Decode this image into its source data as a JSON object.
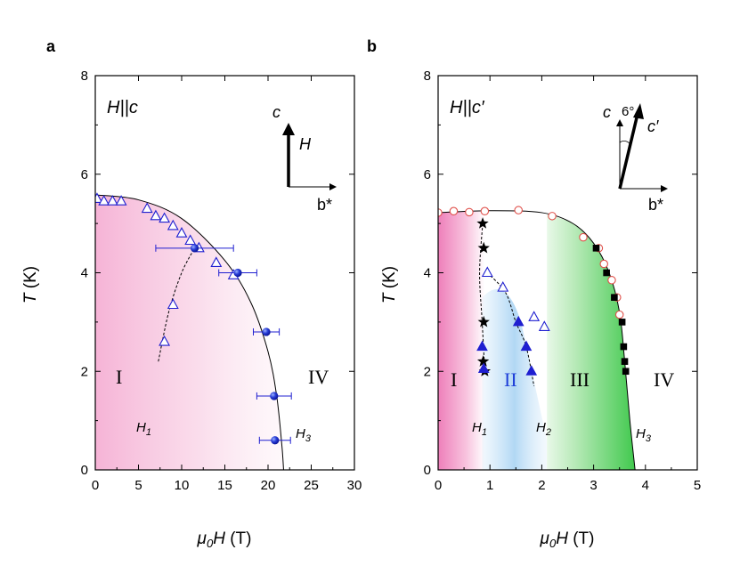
{
  "panels": {
    "a": {
      "label": "a",
      "field_label": "H||c",
      "arrow_c": "c",
      "arrow_H": "H",
      "arrow_b": "b*",
      "phases": [
        "I",
        "IV"
      ],
      "h_labels": [
        "H",
        "1",
        "H",
        "3"
      ]
    },
    "b": {
      "label": "b",
      "field_label": "H||c′",
      "arrow_c": "c",
      "arrow_cprime": "c′",
      "arrow_angle": "6°",
      "arrow_b": "b*",
      "phases": [
        "I",
        "II",
        "III",
        "IV"
      ],
      "h_labels": [
        "H",
        "1",
        "H",
        "2",
        "H",
        "3"
      ]
    }
  },
  "chart_data": [
    {
      "panel": "a",
      "type": "scatter",
      "xlabel": "μ0H (T)",
      "ylabel": "T (K)",
      "xlim": [
        0,
        30
      ],
      "ylim": [
        0,
        8
      ],
      "xticks": [
        "0",
        "5",
        "10",
        "15",
        "20",
        "25",
        "30"
      ],
      "yticks": [
        "0",
        "2",
        "4",
        "6",
        "8"
      ],
      "series": [
        {
          "marker": "open-triangle",
          "color": "#1f1fd0",
          "points": [
            [
              0.2,
              5.5
            ],
            [
              1.0,
              5.45
            ],
            [
              2.0,
              5.45
            ],
            [
              3.0,
              5.45
            ],
            [
              6.0,
              5.3
            ],
            [
              7.0,
              5.15
            ],
            [
              8.0,
              5.1
            ],
            [
              9.0,
              4.95
            ],
            [
              10.0,
              4.8
            ],
            [
              11.0,
              4.65
            ],
            [
              12.0,
              4.5
            ],
            [
              14.0,
              4.2
            ],
            [
              16.0,
              3.95
            ],
            [
              9.0,
              3.35
            ],
            [
              8.0,
              2.6
            ]
          ]
        },
        {
          "marker": "filled-sphere",
          "color": "#1f1fd0",
          "xerr_color": "#1f1fd0",
          "points": [
            [
              11.5,
              4.5,
              4.5
            ],
            [
              16.5,
              4.0,
              2.2
            ],
            [
              19.8,
              2.8,
              1.5
            ],
            [
              20.7,
              1.5,
              2.0
            ],
            [
              20.8,
              0.6,
              1.8
            ]
          ]
        }
      ],
      "boundary_line": [
        [
          0,
          5.58
        ],
        [
          5,
          5.48
        ],
        [
          10,
          5.1
        ],
        [
          15,
          4.25
        ],
        [
          18,
          3.4
        ],
        [
          20,
          2.4
        ],
        [
          21,
          1.5
        ],
        [
          21.6,
          0.5
        ],
        [
          21.8,
          0
        ]
      ],
      "dashed_line": [
        [
          7.3,
          2.2
        ],
        [
          8.5,
          3.2
        ],
        [
          10,
          4.0
        ],
        [
          11.5,
          4.5
        ]
      ]
    },
    {
      "panel": "b",
      "type": "scatter",
      "xlabel": "μ0H (T)",
      "ylabel": "T (K)",
      "xlim": [
        0,
        5
      ],
      "ylim": [
        0,
        8
      ],
      "xticks": [
        "0",
        "1",
        "2",
        "3",
        "4",
        "5"
      ],
      "yticks": [
        "0",
        "2",
        "4",
        "6",
        "8"
      ],
      "series": [
        {
          "marker": "open-circle",
          "color": "#e0504a",
          "points": [
            [
              0.0,
              5.22
            ],
            [
              0.3,
              5.25
            ],
            [
              0.6,
              5.23
            ],
            [
              0.9,
              5.25
            ],
            [
              1.55,
              5.27
            ],
            [
              2.2,
              5.15
            ],
            [
              2.8,
              4.72
            ],
            [
              3.1,
              4.5
            ],
            [
              3.2,
              4.18
            ],
            [
              3.35,
              3.85
            ],
            [
              3.45,
              3.5
            ],
            [
              3.5,
              3.15
            ]
          ]
        },
        {
          "marker": "filled-square",
          "color": "#000000",
          "points": [
            [
              3.05,
              4.5
            ],
            [
              3.25,
              4.0
            ],
            [
              3.4,
              3.5
            ],
            [
              3.55,
              3.0
            ],
            [
              3.58,
              2.5
            ],
            [
              3.6,
              2.2
            ],
            [
              3.62,
              2.0
            ]
          ]
        },
        {
          "marker": "star",
          "color": "#000000",
          "points": [
            [
              0.86,
              5.0
            ],
            [
              0.88,
              4.5
            ],
            [
              0.88,
              3.0
            ],
            [
              0.87,
              2.2
            ],
            [
              0.9,
              2.0
            ]
          ]
        },
        {
          "marker": "open-triangle",
          "color": "#1f1fd0",
          "points": [
            [
              0.95,
              4.0
            ],
            [
              1.25,
              3.7
            ],
            [
              1.85,
              3.1
            ],
            [
              2.05,
              2.9
            ]
          ]
        },
        {
          "marker": "filled-triangle",
          "color": "#1f1fd0",
          "points": [
            [
              0.85,
              2.5
            ],
            [
              0.88,
              2.05
            ],
            [
              1.55,
              3.0
            ],
            [
              1.7,
              2.5
            ],
            [
              1.8,
              2.0
            ]
          ]
        }
      ],
      "boundary_line": [
        [
          0,
          5.22
        ],
        [
          1,
          5.26
        ],
        [
          2,
          5.22
        ],
        [
          2.6,
          5.0
        ],
        [
          3.0,
          4.6
        ],
        [
          3.3,
          4.0
        ],
        [
          3.5,
          3.2
        ],
        [
          3.6,
          2.2
        ],
        [
          3.7,
          1.0
        ],
        [
          3.8,
          0
        ]
      ],
      "dashed_line_1": [
        [
          0.86,
          5.0
        ],
        [
          0.8,
          4.0
        ],
        [
          0.85,
          3.0
        ],
        [
          0.9,
          2.0
        ]
      ],
      "dashed_line_2": [
        [
          0.95,
          4.0
        ],
        [
          1.3,
          3.6
        ],
        [
          1.5,
          3.0
        ],
        [
          1.7,
          2.5
        ],
        [
          1.85,
          1.7
        ]
      ]
    }
  ]
}
